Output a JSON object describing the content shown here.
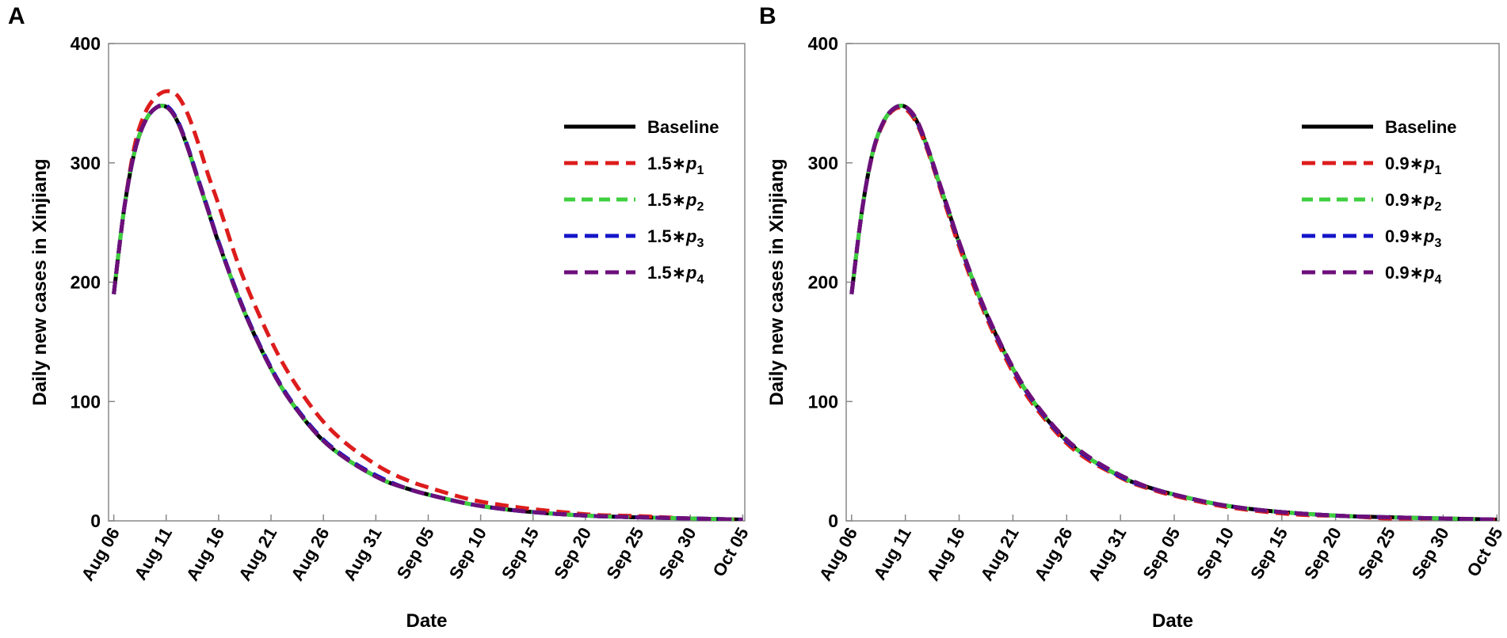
{
  "chart_data": [
    {
      "panel_label": "A",
      "type": "line",
      "xlabel": "Date",
      "ylabel": "Daily new cases in Xinjiang",
      "ylim": [
        0,
        400
      ],
      "yticks": [
        "0",
        "100",
        "200",
        "300",
        "400"
      ],
      "x_range_days": [
        -0.5,
        60.2
      ],
      "x_ticks": [
        {
          "day": 0,
          "label": "Aug 06"
        },
        {
          "day": 5,
          "label": "Aug 11"
        },
        {
          "day": 10,
          "label": "Aug 16"
        },
        {
          "day": 15,
          "label": "Aug 21"
        },
        {
          "day": 20,
          "label": "Aug 26"
        },
        {
          "day": 25,
          "label": "Aug 31"
        },
        {
          "day": 30,
          "label": "Sep 05"
        },
        {
          "day": 35,
          "label": "Sep 10"
        },
        {
          "day": 40,
          "label": "Sep 15"
        },
        {
          "day": 45,
          "label": "Sep 20"
        },
        {
          "day": 50,
          "label": "Sep 25"
        },
        {
          "day": 55,
          "label": "Sep 30"
        },
        {
          "day": 60,
          "label": "Oct 05"
        }
      ],
      "legend_position": "right",
      "x_days": [
        0,
        1,
        2,
        3,
        4,
        5,
        6,
        7,
        8,
        9,
        10,
        12,
        14,
        16,
        18,
        20,
        22,
        24,
        26,
        28,
        30,
        34,
        38,
        42,
        46,
        50,
        55,
        60
      ],
      "series": [
        {
          "name": "Baseline",
          "prefix": "",
          "sub": "",
          "color": "#000000",
          "style": "solid",
          "values": [
            190,
            262,
            310,
            335,
            346,
            347,
            336,
            314,
            287,
            260,
            233,
            185,
            145,
            112,
            87,
            67,
            53,
            42,
            33,
            27,
            22,
            14,
            9,
            6,
            4,
            3,
            2,
            1
          ]
        },
        {
          "name": "1.5*p1",
          "prefix": "1.5∗",
          "sub": "1",
          "color": "#dd1c1c",
          "style": "dashed",
          "values": [
            190,
            262,
            315,
            342,
            355,
            360,
            357,
            342,
            318,
            290,
            265,
            212,
            170,
            134,
            106,
            83,
            66,
            53,
            42,
            34,
            28,
            18,
            12,
            8,
            5,
            4,
            2,
            1
          ]
        },
        {
          "name": "1.5*p2",
          "prefix": "1.5∗",
          "sub": "2",
          "color": "#3fcf3f",
          "style": "dashed",
          "values": [
            190,
            262,
            310,
            335,
            346,
            347,
            336,
            314,
            287,
            260,
            233,
            185,
            145,
            112,
            87,
            67,
            53,
            42,
            33,
            27,
            22,
            14,
            9,
            6,
            4,
            3,
            2,
            1
          ]
        },
        {
          "name": "1.5*p3",
          "prefix": "1.5∗",
          "sub": "3",
          "color": "#1515c8",
          "style": "dashed",
          "values": [
            190,
            262,
            310,
            335,
            346,
            348,
            337,
            315,
            288,
            261,
            234,
            186,
            146,
            113,
            88,
            68,
            54,
            43,
            34,
            27,
            22,
            14,
            9,
            6,
            4,
            3,
            2,
            1
          ]
        },
        {
          "name": "1.5*p4",
          "prefix": "1.5∗",
          "sub": "4",
          "color": "#6d0f7a",
          "style": "dashed",
          "values": [
            190,
            262,
            310,
            335,
            346,
            347,
            336,
            314,
            287,
            260,
            233,
            185,
            145,
            112,
            87,
            67,
            53,
            42,
            33,
            27,
            22,
            14,
            9,
            6,
            4,
            3,
            2,
            1
          ]
        }
      ]
    },
    {
      "panel_label": "B",
      "type": "line",
      "xlabel": "Date",
      "ylabel": "Daily new cases in Xinjiang",
      "ylim": [
        0,
        400
      ],
      "yticks": [
        "0",
        "100",
        "200",
        "300",
        "400"
      ],
      "x_range_days": [
        -0.5,
        60.2
      ],
      "x_ticks": [
        {
          "day": 0,
          "label": "Aug 06"
        },
        {
          "day": 5,
          "label": "Aug 11"
        },
        {
          "day": 10,
          "label": "Aug 16"
        },
        {
          "day": 15,
          "label": "Aug 21"
        },
        {
          "day": 20,
          "label": "Aug 26"
        },
        {
          "day": 25,
          "label": "Aug 31"
        },
        {
          "day": 30,
          "label": "Sep 05"
        },
        {
          "day": 35,
          "label": "Sep 10"
        },
        {
          "day": 40,
          "label": "Sep 15"
        },
        {
          "day": 45,
          "label": "Sep 20"
        },
        {
          "day": 50,
          "label": "Sep 25"
        },
        {
          "day": 55,
          "label": "Sep 30"
        },
        {
          "day": 60,
          "label": "Oct 05"
        }
      ],
      "legend_position": "right",
      "x_days": [
        0,
        1,
        2,
        3,
        4,
        5,
        6,
        7,
        8,
        9,
        10,
        12,
        14,
        16,
        18,
        20,
        22,
        24,
        26,
        28,
        30,
        34,
        38,
        42,
        46,
        50,
        55,
        60
      ],
      "series": [
        {
          "name": "Baseline",
          "prefix": "",
          "sub": "",
          "color": "#000000",
          "style": "solid",
          "values": [
            190,
            262,
            310,
            335,
            346,
            347,
            336,
            314,
            287,
            260,
            233,
            185,
            145,
            112,
            87,
            67,
            53,
            42,
            33,
            27,
            22,
            14,
            9,
            6,
            4,
            3,
            2,
            1
          ]
        },
        {
          "name": "0.9*p1",
          "prefix": "0.9∗",
          "sub": "1",
          "color": "#dd1c1c",
          "style": "dashed",
          "values": [
            190,
            262,
            309,
            334,
            345,
            345,
            334,
            312,
            285,
            257,
            230,
            182,
            142,
            109,
            85,
            65,
            51,
            41,
            32,
            26,
            21,
            13,
            8,
            5,
            4,
            2,
            2,
            1
          ]
        },
        {
          "name": "0.9*p2",
          "prefix": "0.9∗",
          "sub": "2",
          "color": "#3fcf3f",
          "style": "dashed",
          "values": [
            190,
            262,
            310,
            335,
            346,
            347,
            336,
            314,
            287,
            260,
            233,
            185,
            145,
            112,
            87,
            67,
            53,
            42,
            33,
            27,
            22,
            14,
            9,
            6,
            4,
            3,
            2,
            1
          ]
        },
        {
          "name": "0.9*p3",
          "prefix": "0.9∗",
          "sub": "3",
          "color": "#1515c8",
          "style": "dashed",
          "values": [
            190,
            262,
            310,
            335,
            346,
            347,
            336,
            314,
            287,
            260,
            233,
            185,
            145,
            112,
            87,
            67,
            53,
            42,
            33,
            27,
            22,
            14,
            9,
            6,
            4,
            3,
            2,
            1
          ]
        },
        {
          "name": "0.9*p4",
          "prefix": "0.9∗",
          "sub": "4",
          "color": "#6d0f7a",
          "style": "dashed",
          "values": [
            190,
            262,
            310,
            335,
            346,
            347,
            337,
            315,
            288,
            261,
            234,
            186,
            146,
            113,
            88,
            68,
            54,
            43,
            34,
            27,
            22,
            14,
            9,
            6,
            4,
            3,
            2,
            1
          ]
        }
      ]
    }
  ]
}
